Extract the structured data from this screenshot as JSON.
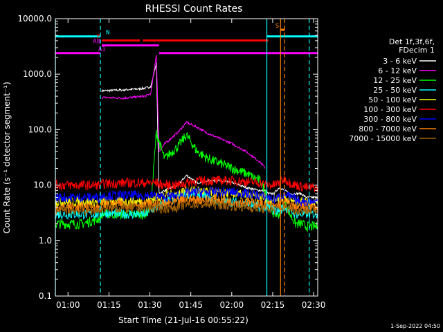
{
  "chart_data": {
    "type": "line",
    "title": "RHESSI Count Rates",
    "xlabel": "Start Time (21-Jul-16 00:55:22)",
    "ylabel": "Count Rate (s⁻¹ detector segment⁻¹)",
    "yscale": "log",
    "xlim": [
      "00:55:22",
      "02:31:30"
    ],
    "ylim": [
      0.1,
      10000
    ],
    "xticks": [
      "01:00",
      "01:15",
      "01:30",
      "01:45",
      "02:00",
      "02:15",
      "02:30"
    ],
    "yticks": [
      "0.1",
      "1.0",
      "10.0",
      "100.0",
      "1000.0",
      "10000.0"
    ],
    "timestamp": "1-Sep-2022 04:50",
    "legend": {
      "position": "right",
      "header": [
        "Det 1f,3f,6f,",
        "FDecim 1"
      ],
      "entries": [
        {
          "label": "3 - 6 keV",
          "color": "#ffffff"
        },
        {
          "label": "6 - 12 keV",
          "color": "#ff00ff"
        },
        {
          "label": "12 - 25 keV",
          "color": "#00ff00"
        },
        {
          "label": "25 - 50 keV",
          "color": "#00ffff"
        },
        {
          "label": "50 - 100 keV",
          "color": "#ffff00"
        },
        {
          "label": "100 - 300 keV",
          "color": "#ff0000"
        },
        {
          "label": "300 - 800 keV",
          "color": "#0000ff"
        },
        {
          "label": "800 - 7000 keV",
          "color": "#ff8000"
        },
        {
          "label": "7000 - 15000 keV",
          "color": "#a06000"
        }
      ]
    },
    "x_minutes": [
      0,
      10,
      16.5,
      17,
      25,
      30,
      33,
      35,
      37,
      38,
      40,
      45,
      48,
      52,
      56,
      60,
      65,
      70,
      75,
      77,
      78,
      80,
      82,
      84,
      86,
      88,
      90,
      92,
      96
    ],
    "series": [
      {
        "name": "3 - 6 keV",
        "color": "#ffffff",
        "values": [
          null,
          null,
          null,
          500,
          520,
          540,
          560,
          600,
          1600,
          7,
          8,
          10,
          15,
          11,
          12,
          12,
          11,
          9,
          8,
          8,
          7,
          7,
          9,
          8,
          7,
          7,
          7,
          6,
          6
        ]
      },
      {
        "name": "6 - 12 keV",
        "color": "#ff00ff",
        "values": [
          null,
          null,
          null,
          380,
          370,
          390,
          400,
          450,
          2300,
          40,
          55,
          90,
          135,
          110,
          85,
          70,
          55,
          40,
          26,
          20,
          null,
          null,
          null,
          null,
          null,
          null,
          null,
          null,
          null
        ]
      },
      {
        "name": "12 - 25 keV",
        "color": "#00ff00",
        "values": [
          2,
          2,
          2.5,
          3,
          3,
          3,
          3,
          4,
          90,
          60,
          30,
          50,
          80,
          40,
          30,
          25,
          20,
          16,
          12,
          8,
          5,
          3,
          3,
          5,
          3,
          2,
          2,
          1.8,
          1.8
        ]
      },
      {
        "name": "25 - 50 keV",
        "color": "#00ffff",
        "values": [
          3,
          3,
          3,
          3.2,
          3,
          3,
          3,
          3.5,
          4,
          4,
          5,
          6,
          7,
          7,
          6,
          5,
          5,
          4.5,
          4,
          4,
          4,
          3.5,
          3.5,
          4,
          3.5,
          3,
          3,
          3,
          3
        ]
      },
      {
        "name": "50 - 100 keV",
        "color": "#ffff00",
        "values": [
          5,
          5,
          5,
          5,
          5,
          5,
          5,
          5.5,
          6,
          6,
          6.5,
          7,
          8,
          8,
          7.5,
          7,
          7,
          6.5,
          6,
          6,
          5.5,
          5.5,
          6,
          6,
          5.5,
          5,
          5,
          5,
          5
        ]
      },
      {
        "name": "100 - 300 keV",
        "color": "#ff0000",
        "values": [
          10,
          10,
          10,
          10.5,
          11,
          11,
          11,
          11,
          11,
          10.5,
          10,
          10,
          11,
          12,
          12,
          12,
          12,
          11.5,
          11,
          10,
          10,
          10,
          11,
          13,
          11,
          10,
          9.5,
          9,
          9
        ]
      },
      {
        "name": "300 - 800 keV",
        "color": "#0000ff",
        "values": [
          6,
          6,
          6,
          6.5,
          6.5,
          6.5,
          6.5,
          6.5,
          6.5,
          6,
          6,
          6.5,
          7,
          7.5,
          7.5,
          7.5,
          7.5,
          7,
          6.5,
          6,
          6,
          5.5,
          6,
          7,
          6,
          5.5,
          5,
          5,
          5
        ]
      },
      {
        "name": "800 - 7000 keV",
        "color": "#ff8000",
        "values": [
          4,
          4,
          4,
          4.5,
          4.5,
          4.5,
          4.5,
          4.5,
          4.5,
          4.5,
          4.5,
          5,
          5.5,
          5.5,
          5.5,
          5.5,
          5,
          5,
          4.5,
          4.5,
          4.5,
          4,
          4.5,
          5,
          4.5,
          4,
          4,
          4,
          4
        ]
      },
      {
        "name": "7000 - 15000 keV",
        "color": "#a06000",
        "values": [
          3.5,
          3.5,
          3.5,
          3.8,
          3.8,
          3.8,
          3.8,
          3.8,
          3.8,
          3.8,
          3.8,
          4,
          4.5,
          4.5,
          4.5,
          4.5,
          4.2,
          4,
          3.8,
          3.8,
          3.8,
          3.5,
          3.8,
          4,
          3.8,
          3.5,
          3.5,
          3.5,
          3.5
        ]
      }
    ],
    "vertical_lines": [
      {
        "time_min": 0,
        "color": "#00ffff",
        "style": "solid"
      },
      {
        "time_min": 16.5,
        "color": "#00ffff",
        "style": "dashed"
      },
      {
        "time_min": 77.5,
        "color": "#00ffff",
        "style": "solid"
      },
      {
        "time_min": 82.5,
        "color": "#ff8000",
        "style": "solid"
      },
      {
        "time_min": 84,
        "color": "#ff8000",
        "style": "dashed"
      },
      {
        "time_min": 93,
        "color": "#00ffff",
        "style": "dashed"
      }
    ],
    "state_bars": [
      {
        "label": "N",
        "color": "#00ffff",
        "level": 4800,
        "segments": [
          [
            0,
            16.5
          ],
          [
            77.5,
            96
          ]
        ]
      },
      {
        "label": "F",
        "color": "#ff0000",
        "level": 4050,
        "segments": [
          [
            17,
            31
          ],
          [
            32,
            78
          ]
        ]
      },
      {
        "label": "A0",
        "color": "#ff00ff",
        "level": 3300,
        "segments": [
          [
            17,
            38
          ]
        ]
      },
      {
        "label": "A1",
        "color": "#ff00ff",
        "level": 2400,
        "segments": [
          [
            0,
            16.5
          ],
          [
            38,
            96
          ]
        ]
      },
      {
        "label": "S",
        "color": "#ff8000",
        "level": 6300,
        "segments": [
          [
            82.5,
            84
          ]
        ]
      }
    ]
  }
}
